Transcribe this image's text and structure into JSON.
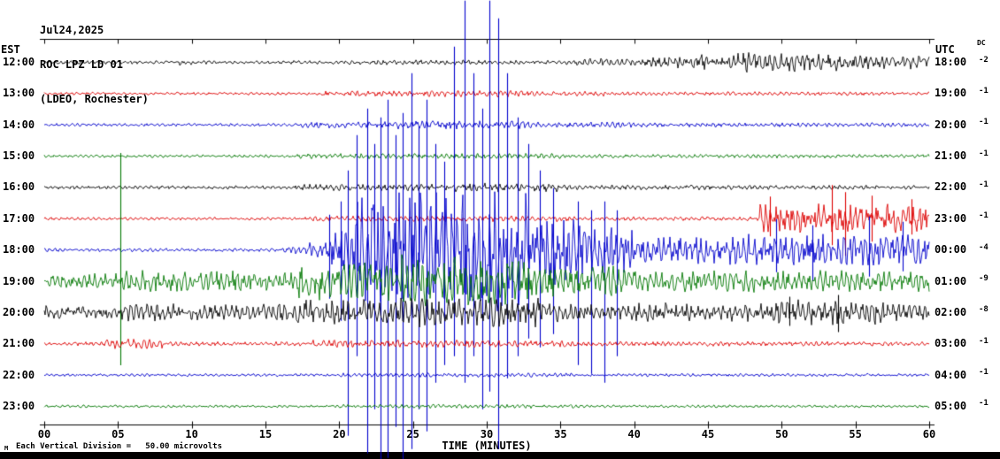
{
  "header": {
    "date": "Jul24,2025",
    "station": "ROC LPZ LD 01",
    "location": "(LDEO, Rochester)"
  },
  "labels": {
    "left_tz": "EST",
    "right_tz": "UTC",
    "dc_header": "DC",
    "x_axis_title": "TIME (MINUTES)",
    "scale_prefix": "M",
    "scale_note": "Each Vertical Division =   50.00 microvolts"
  },
  "chart_data": {
    "type": "line",
    "subtype": "seismogram-helicorder",
    "title": "ROC LPZ LD 01 (LDEO, Rochester) Jul24,2025",
    "xlabel": "TIME (MINUTES)",
    "x_range_minutes": [
      0,
      60
    ],
    "x_tick_interval_minutes": 5,
    "x_ticks": [
      "00",
      "05",
      "10",
      "15",
      "20",
      "25",
      "30",
      "35",
      "40",
      "45",
      "50",
      "55",
      "60"
    ],
    "vertical_division_microvolts": 50.0,
    "amplitude_units": "px_estimated_from_image",
    "rows": [
      {
        "est": "12:00",
        "utc": "18:00",
        "dc": "-2",
        "color": "#000000",
        "seed": 101,
        "envelope": [
          [
            0,
            9,
            1.8
          ],
          [
            9,
            10.5,
            3
          ],
          [
            10.5,
            20,
            1.8
          ],
          [
            20,
            29,
            2.6
          ],
          [
            29,
            36,
            2.2
          ],
          [
            36,
            41,
            4
          ],
          [
            41,
            44,
            6
          ],
          [
            44,
            47,
            8
          ],
          [
            47,
            51,
            11
          ],
          [
            51,
            55,
            9
          ],
          [
            55,
            60,
            7
          ]
        ],
        "spikes": []
      },
      {
        "est": "13:00",
        "utc": "19:00",
        "dc": "-1",
        "color": "#dd0000",
        "seed": 202,
        "envelope": [
          [
            0,
            18,
            1.5
          ],
          [
            18,
            26,
            3
          ],
          [
            26,
            33,
            3.4
          ],
          [
            33,
            38,
            2.6
          ],
          [
            38,
            60,
            2
          ]
        ],
        "spikes": []
      },
      {
        "est": "14:00",
        "utc": "20:00",
        "dc": "-1",
        "color": "#0000cc",
        "seed": 303,
        "envelope": [
          [
            0,
            17,
            1.6
          ],
          [
            17,
            24,
            3.2
          ],
          [
            24,
            33,
            4.4
          ],
          [
            33,
            40,
            3
          ],
          [
            40,
            60,
            2.2
          ]
        ],
        "spikes": []
      },
      {
        "est": "15:00",
        "utc": "21:00",
        "dc": "-1",
        "color": "#007700",
        "seed": 404,
        "envelope": [
          [
            0,
            17,
            1.5
          ],
          [
            17,
            35,
            2.8
          ],
          [
            35,
            60,
            1.9
          ]
        ],
        "spikes": []
      },
      {
        "est": "16:00",
        "utc": "22:00",
        "dc": "-1",
        "color": "#000000",
        "seed": 505,
        "envelope": [
          [
            0,
            17,
            1.8
          ],
          [
            17,
            26,
            3.4
          ],
          [
            26,
            35,
            4.6
          ],
          [
            35,
            45,
            2.6
          ],
          [
            45,
            60,
            2.2
          ]
        ],
        "spikes": []
      },
      {
        "est": "17:00",
        "utc": "23:00",
        "dc": "-1",
        "color": "#dd0000",
        "seed": 606,
        "envelope": [
          [
            0,
            18,
            1.6
          ],
          [
            18,
            36,
            3
          ],
          [
            36,
            48.5,
            2.1
          ],
          [
            48.5,
            60,
            15
          ]
        ],
        "spikes": [
          [
            49.2,
            25,
            20
          ],
          [
            53.4,
            38,
            30
          ],
          [
            54.3,
            30,
            42
          ],
          [
            56.1,
            26,
            26
          ],
          [
            58.8,
            22,
            18
          ]
        ]
      },
      {
        "est": "18:00",
        "utc": "00:00",
        "dc": "-4",
        "color": "#0000cc",
        "seed": 707,
        "envelope": [
          [
            0,
            16,
            1.8
          ],
          [
            16,
            18,
            4
          ],
          [
            18,
            19.5,
            9
          ],
          [
            19.5,
            21,
            28
          ],
          [
            21,
            27,
            60
          ],
          [
            27,
            33,
            65
          ],
          [
            33,
            36,
            38
          ],
          [
            36,
            40,
            26
          ],
          [
            40,
            47,
            15
          ],
          [
            47,
            60,
            16
          ]
        ],
        "spikes": [
          [
            19.3,
            40,
            55
          ],
          [
            20.1,
            55,
            80
          ],
          [
            20.6,
            90,
            210
          ],
          [
            21.2,
            130,
            120
          ],
          [
            21.9,
            160,
            230
          ],
          [
            22.4,
            120,
            180
          ],
          [
            22.8,
            150,
            255
          ],
          [
            23.3,
            170,
            235
          ],
          [
            23.8,
            130,
            200
          ],
          [
            24.3,
            155,
            250
          ],
          [
            24.9,
            200,
            225
          ],
          [
            25.4,
            140,
            180
          ],
          [
            25.9,
            170,
            205
          ],
          [
            26.5,
            120,
            150
          ],
          [
            27.1,
            100,
            130
          ],
          [
            27.8,
            230,
            120
          ],
          [
            28.5,
            282,
            150
          ],
          [
            29.1,
            200,
            120
          ],
          [
            29.7,
            160,
            180
          ],
          [
            30.2,
            282,
            160
          ],
          [
            30.8,
            262,
            225
          ],
          [
            31.4,
            200,
            145
          ],
          [
            32.1,
            150,
            120
          ],
          [
            32.8,
            120,
            100
          ],
          [
            33.6,
            90,
            110
          ],
          [
            34.5,
            70,
            95
          ],
          [
            36.2,
            55,
            130
          ],
          [
            37.1,
            45,
            140
          ],
          [
            38.0,
            55,
            150
          ],
          [
            38.8,
            45,
            120
          ],
          [
            49.6,
            35,
            25
          ],
          [
            52.1,
            28,
            35
          ],
          [
            55.9,
            38,
            30
          ],
          [
            58.2,
            32,
            24
          ]
        ]
      },
      {
        "est": "19:00",
        "utc": "01:00",
        "dc": "-9",
        "color": "#007700",
        "seed": 808,
        "envelope": [
          [
            0,
            5,
            8
          ],
          [
            5,
            17,
            11
          ],
          [
            17,
            24,
            20
          ],
          [
            24,
            33,
            27
          ],
          [
            33,
            40,
            16
          ],
          [
            40,
            60,
            11
          ]
        ],
        "spikes": [
          [
            5.15,
            145,
            95
          ]
        ]
      },
      {
        "est": "20:00",
        "utc": "02:00",
        "dc": "-8",
        "color": "#000000",
        "seed": 909,
        "envelope": [
          [
            0,
            5,
            7
          ],
          [
            5,
            17,
            9
          ],
          [
            17,
            24,
            14
          ],
          [
            24,
            34,
            16
          ],
          [
            34,
            44,
            10
          ],
          [
            44,
            49,
            9
          ],
          [
            49,
            57,
            13
          ],
          [
            57,
            60,
            9
          ]
        ],
        "spikes": [
          [
            50.5,
            18,
            15
          ],
          [
            53.8,
            20,
            22
          ]
        ]
      },
      {
        "est": "21:00",
        "utc": "03:00",
        "dc": "-1",
        "color": "#dd0000",
        "seed": 1010,
        "envelope": [
          [
            0,
            4,
            2
          ],
          [
            4,
            8,
            5
          ],
          [
            8,
            18,
            2.2
          ],
          [
            18,
            30,
            4
          ],
          [
            30,
            36,
            3.4
          ],
          [
            36,
            60,
            2.4
          ]
        ],
        "spikes": []
      },
      {
        "est": "22:00",
        "utc": "04:00",
        "dc": "-1",
        "color": "#0000cc",
        "seed": 1111,
        "envelope": [
          [
            0,
            20,
            1.5
          ],
          [
            20,
            36,
            2.2
          ],
          [
            36,
            60,
            1.6
          ]
        ],
        "spikes": []
      },
      {
        "est": "23:00",
        "utc": "05:00",
        "dc": "-1",
        "color": "#007700",
        "seed": 1212,
        "envelope": [
          [
            0,
            20,
            1.4
          ],
          [
            20,
            36,
            2
          ],
          [
            36,
            60,
            1.5
          ]
        ],
        "spikes": []
      }
    ]
  }
}
